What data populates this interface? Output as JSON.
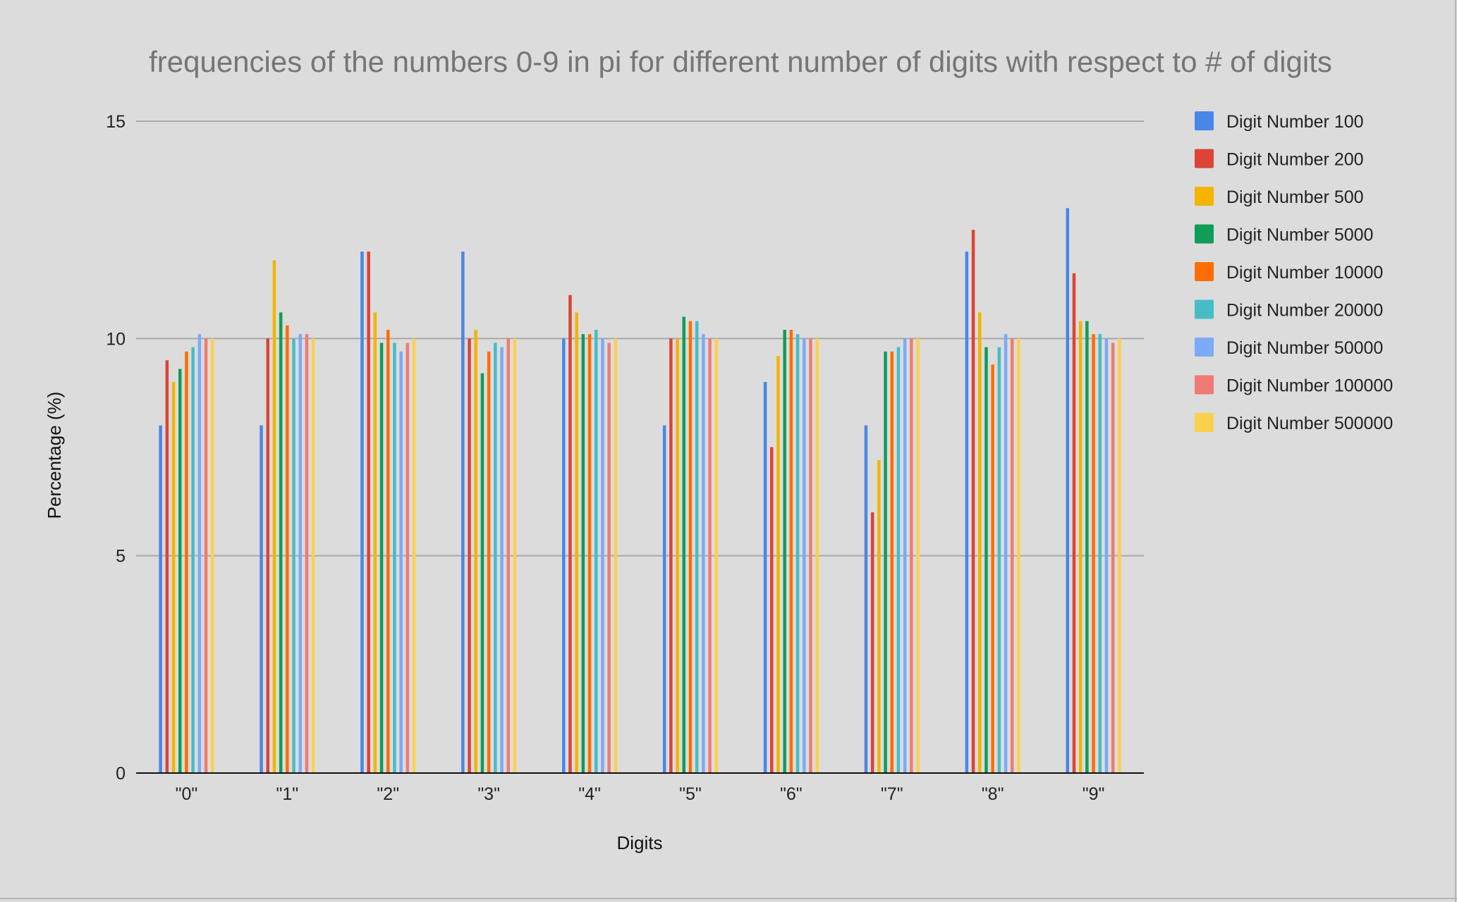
{
  "chart_data": {
    "type": "bar",
    "title": "frequencies of the numbers 0-9 in pi for different number of digits with respect to # of digits",
    "xlabel": "Digits",
    "ylabel": "Percentage (%)",
    "ylim": [
      0,
      15
    ],
    "yticks": [
      0,
      5,
      10,
      15
    ],
    "grid": true,
    "legend_position": "right",
    "categories": [
      "\"0\"",
      "\"1\"",
      "\"2\"",
      "\"3\"",
      "\"4\"",
      "\"5\"",
      "\"6\"",
      "\"7\"",
      "\"8\"",
      "\"9\""
    ],
    "series": [
      {
        "name": "Digit Number 100",
        "color": "#4a86e8",
        "values": [
          8,
          8,
          12,
          12,
          10,
          8,
          9,
          8,
          12,
          13
        ]
      },
      {
        "name": "Digit Number 200",
        "color": "#db4437",
        "values": [
          9.5,
          10,
          12,
          10,
          11,
          10,
          7.5,
          6,
          12.5,
          11.5
        ]
      },
      {
        "name": "Digit Number 500",
        "color": "#f4b400",
        "values": [
          9,
          11.8,
          10.6,
          10.2,
          10.6,
          10,
          9.6,
          7.2,
          10.6,
          10.4
        ]
      },
      {
        "name": "Digit Number 5000",
        "color": "#0f9d58",
        "values": [
          9.3,
          10.6,
          9.9,
          9.2,
          10.1,
          10.5,
          10.2,
          9.7,
          9.8,
          10.4
        ]
      },
      {
        "name": "Digit Number 10000",
        "color": "#ff6d01",
        "values": [
          9.7,
          10.3,
          10.2,
          9.7,
          10.1,
          10.4,
          10.2,
          9.7,
          9.4,
          10.1
        ]
      },
      {
        "name": "Digit Number 20000",
        "color": "#46bdc6",
        "values": [
          9.8,
          10,
          9.9,
          9.9,
          10.2,
          10.4,
          10.1,
          9.8,
          9.8,
          10.1
        ]
      },
      {
        "name": "Digit Number 50000",
        "color": "#7baaf7",
        "values": [
          10.1,
          10.1,
          9.7,
          9.8,
          10,
          10.1,
          10,
          10,
          10.1,
          10
        ]
      },
      {
        "name": "Digit Number 100000",
        "color": "#f07b72",
        "values": [
          10,
          10.1,
          9.9,
          10,
          9.9,
          10,
          10,
          10,
          10,
          9.9
        ]
      },
      {
        "name": "Digit Number 500000",
        "color": "#fcd04f",
        "values": [
          10,
          10,
          10,
          10,
          10,
          10,
          10,
          10,
          10,
          10
        ]
      }
    ]
  }
}
